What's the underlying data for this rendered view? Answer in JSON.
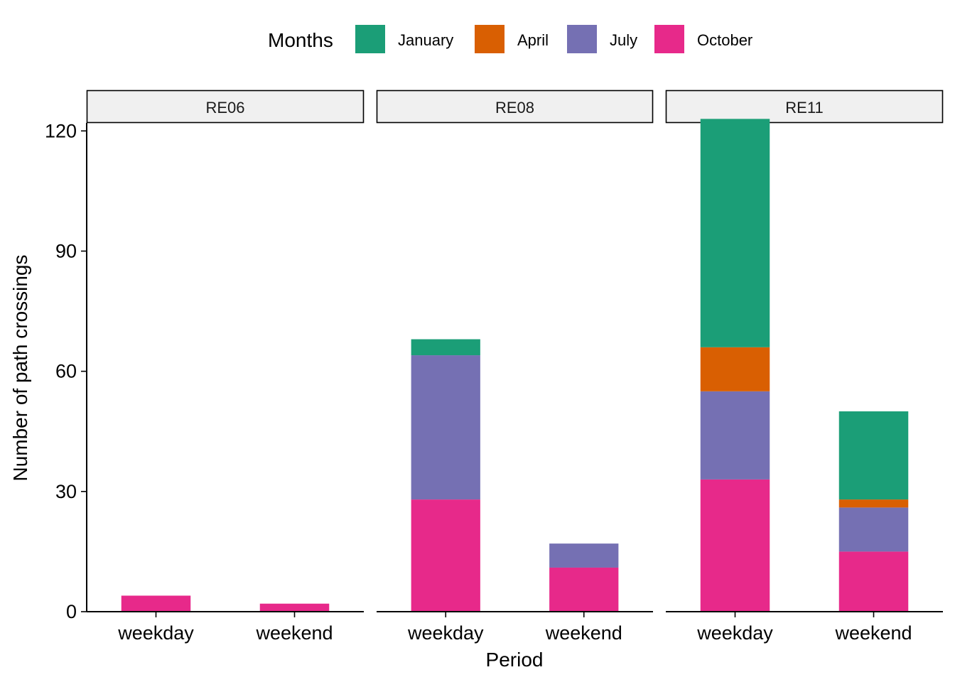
{
  "chart_data": {
    "type": "bar",
    "stacked": true,
    "xlabel": "Period",
    "ylabel": "Number of path crossings",
    "ylim": [
      0,
      122
    ],
    "yticks": [
      0,
      30,
      60,
      90,
      120
    ],
    "grid": false,
    "legend": {
      "title": "Months",
      "position": "top",
      "entries": [
        {
          "name": "January",
          "color": "#1B9E77"
        },
        {
          "name": "April",
          "color": "#D95F02"
        },
        {
          "name": "July",
          "color": "#7570B3"
        },
        {
          "name": "October",
          "color": "#E7298A"
        }
      ]
    },
    "stack_order_bottom_to_top": [
      "October",
      "July",
      "April",
      "January"
    ],
    "categories": [
      "weekday",
      "weekend"
    ],
    "facets": [
      {
        "name": "RE06",
        "series": [
          {
            "name": "January",
            "values": [
              0,
              0
            ]
          },
          {
            "name": "April",
            "values": [
              0,
              0
            ]
          },
          {
            "name": "July",
            "values": [
              0,
              0
            ]
          },
          {
            "name": "October",
            "values": [
              4,
              2
            ]
          }
        ]
      },
      {
        "name": "RE08",
        "series": [
          {
            "name": "January",
            "values": [
              4,
              0
            ]
          },
          {
            "name": "April",
            "values": [
              0,
              0
            ]
          },
          {
            "name": "July",
            "values": [
              36,
              6
            ]
          },
          {
            "name": "October",
            "values": [
              28,
              11
            ]
          }
        ]
      },
      {
        "name": "RE11",
        "series": [
          {
            "name": "January",
            "values": [
              57,
              22
            ]
          },
          {
            "name": "April",
            "values": [
              11,
              2
            ]
          },
          {
            "name": "July",
            "values": [
              22,
              11
            ]
          },
          {
            "name": "October",
            "values": [
              33,
              15
            ]
          }
        ]
      }
    ]
  }
}
